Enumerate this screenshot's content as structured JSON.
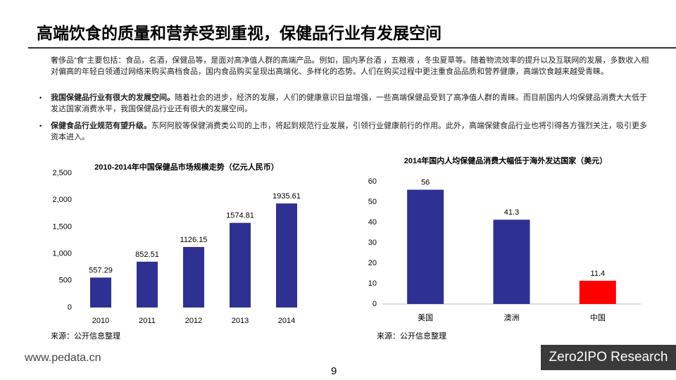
{
  "header": {
    "title": "高端饮食的质量和营养受到重视，保健品行业有发展空间"
  },
  "paragraphs": [
    {
      "text": "奢侈品“食”主要包括：食品，名酒，保健品等，是面对高净值人群的高端产品。例如，国内茅台酒 ，五粮液 ，冬虫夏草等。随着物流效率的提升以及互联网的发展，多数收入相对偏高的年轻白领通过网络来购买高档食品，国内食品购买呈现出高端化、多样化的态势。人们在购买过程中更注重食品品质和营养健康，高端饮食越来越受青睐。"
    },
    {
      "bold": "我国保健品行业有很大的发展空间。",
      "text": "随着社会的进步，经济的发展，人们的健康意识日益增强，一些高端保健品受到了高净值人群的青睐。而目前国内人均保健品消费大大低于发达国家消费水平，我国保健品行业还有很大的发展空间。"
    },
    {
      "bold": "保健食品行业规范有望升级。",
      "text": "东阿阿胶等保健消费类公司的上市，将起到规范行业发展，引领行业健康前行的作用。此外，高端保健食品行业也将引得各方强烈关注，吸引更多资本进入。"
    }
  ],
  "chart_data": [
    {
      "type": "bar",
      "title": "2010-2014年中国保健品市场规模走势（亿元人民币）",
      "categories": [
        "2010",
        "2011",
        "2012",
        "2013",
        "2014"
      ],
      "values": [
        557.29,
        852.51,
        1126.15,
        1574.81,
        1935.61
      ],
      "color": "#2e3192",
      "ylim": [
        0,
        2500
      ],
      "yticks": [
        0,
        500,
        {
          "value": 1000,
          "label": "1,000"
        },
        {
          "value": 1500,
          "label": "1,500"
        },
        {
          "value": 2000,
          "label": "2,000"
        },
        {
          "value": 2500,
          "label": "2,500"
        }
      ],
      "source": "来源：公开信息整理"
    },
    {
      "type": "bar",
      "title": "2014年国内人均保健品消费大幅低于海外发达国家（美元）",
      "categories": [
        "美国",
        "澳洲",
        "中国"
      ],
      "values": [
        56,
        41.3,
        11.4
      ],
      "colors": [
        "#2e3192",
        "#2e3192",
        "#ff0000"
      ],
      "ylim": [
        0,
        60
      ],
      "yticks": [
        0,
        10,
        20,
        30,
        40,
        50,
        60
      ],
      "source": "来源：公开信息整理"
    }
  ],
  "footer": {
    "website": "www.pedata.cn",
    "page": "9",
    "logo": "Zero2IPO Research"
  }
}
